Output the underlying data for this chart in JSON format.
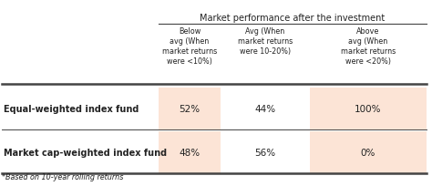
{
  "title": "Market performance after the investment",
  "col_headers": [
    "Below\navg (When\nmarket returns\nwere <10%)",
    "Avg (When\nmarket returns\nwere 10-20%)",
    "Above\navg (When\nmarket returns\nwere <20%)"
  ],
  "row_labels": [
    "Equal-weighted index fund",
    "Market cap-weighted index fund"
  ],
  "data": [
    [
      "52%",
      "44%",
      "100%"
    ],
    [
      "48%",
      "56%",
      "0%"
    ]
  ],
  "footnote": "*Based on 10-year rolling returns",
  "highlight_cols": [
    0,
    2
  ],
  "highlight_color": "#fce4d6",
  "normal_color": "#ffffff",
  "border_color": "#444444",
  "text_color": "#222222",
  "background_color": "#ffffff"
}
